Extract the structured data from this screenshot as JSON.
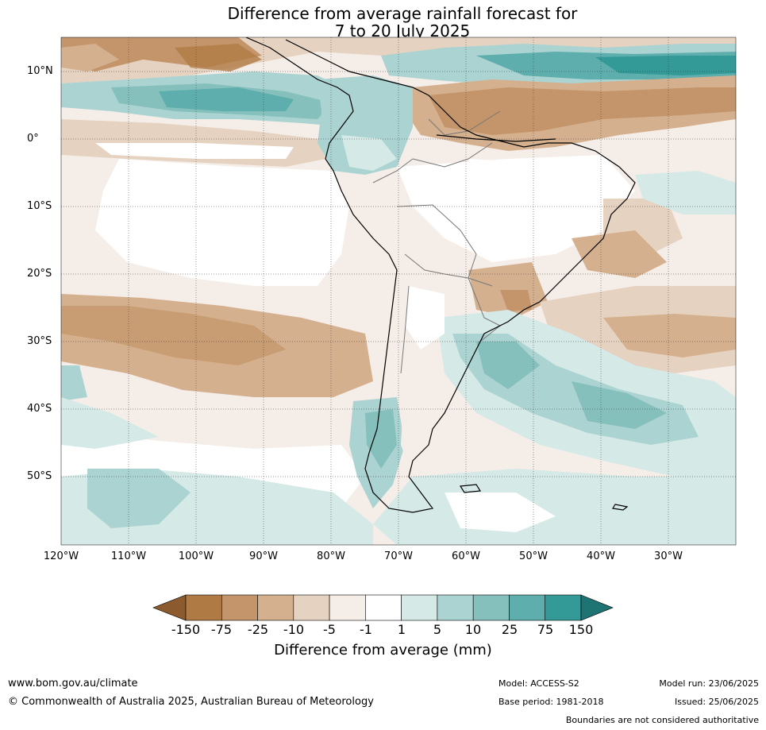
{
  "title": {
    "line1": "Difference from average rainfall forecast for",
    "line2": "7 to 20 July 2025"
  },
  "map": {
    "lat_labels": [
      "10°N",
      "0°",
      "10°S",
      "20°S",
      "30°S",
      "40°S",
      "50°S"
    ],
    "lon_labels": [
      "120°W",
      "110°W",
      "100°W",
      "90°W",
      "80°W",
      "70°W",
      "60°W",
      "50°W",
      "40°W",
      "30°W"
    ]
  },
  "colorbar": {
    "ticks": [
      "-150",
      "-75",
      "-25",
      "-10",
      "-5",
      "-1",
      "1",
      "5",
      "10",
      "25",
      "75",
      "150"
    ],
    "colors": [
      "#8c5a2f",
      "#b07a45",
      "#c4956a",
      "#d4b08e",
      "#e6d2c0",
      "#f5ede8",
      "#ffffff",
      "#d5e9e7",
      "#abd3d1",
      "#85c0bd",
      "#5daead",
      "#339a97",
      "#1e7373"
    ],
    "label": "Difference from average (mm)"
  },
  "footer": {
    "url": "www.bom.gov.au/climate",
    "copyright": "© Commonwealth of Australia 2025, Australian Bureau of Meteorology",
    "model": "Model: ACCESS-S2",
    "base_period": "Base period: 1981-2018",
    "model_run": "Model run: 23/06/2025",
    "issued": "Issued: 25/06/2025",
    "boundaries": "Boundaries are not considered authoritative"
  }
}
